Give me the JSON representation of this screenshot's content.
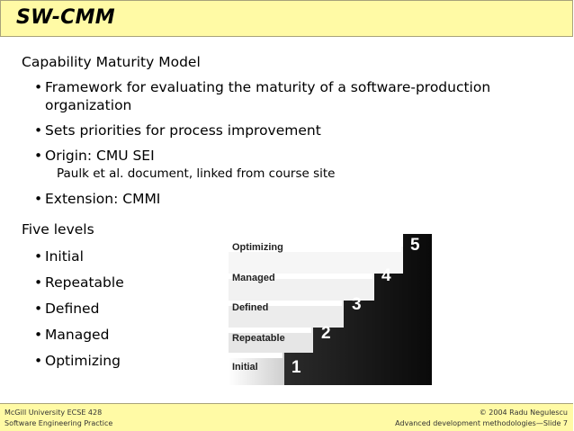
{
  "header": {
    "title": "SW-CMM"
  },
  "section1": {
    "heading": "Capability Maturity Model",
    "bullets": [
      "Framework for evaluating the maturity of a software-production",
      "organization",
      "Sets priorities for process improvement",
      "Origin: CMU SEI",
      "Paulk et al. document, linked from course site",
      "Extension: CMMI"
    ]
  },
  "section2": {
    "heading": "Five levels",
    "bullets": [
      "Initial",
      "Repeatable",
      "Defined",
      "Managed",
      "Optimizing"
    ]
  },
  "diagram": {
    "labels": [
      "Optimizing",
      "Managed",
      "Defined",
      "Repeatable",
      "Initial"
    ],
    "numbers": [
      "5",
      "4",
      "3",
      "2",
      "1"
    ]
  },
  "footer": {
    "left_line1": "McGill University ECSE 428",
    "left_line2": "Software Engineering Practice",
    "right_line1": "© 2004 Radu Negulescu",
    "right_line2": "Advanced development methodologies—Slide 7"
  },
  "colors": {
    "header_bg": "#fffaa5",
    "stair_dark": "#111111"
  }
}
